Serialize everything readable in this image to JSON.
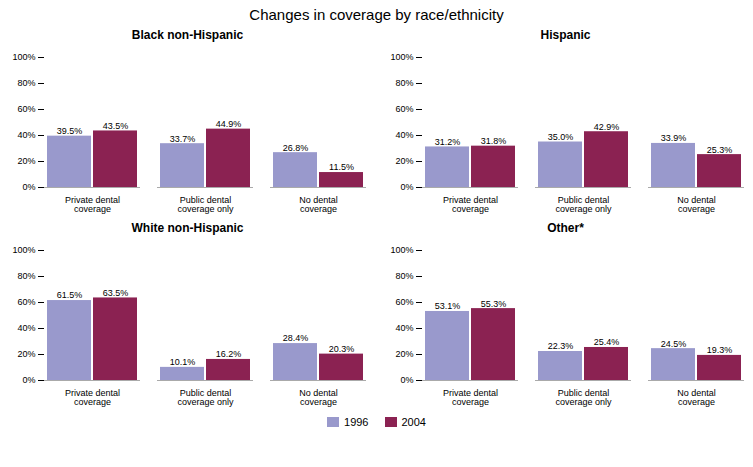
{
  "title": "Changes in coverage by race/ethnicity",
  "legend": "bottom",
  "chart_data": [
    {
      "type": "bar",
      "title": "Black non-Hispanic",
      "categories": [
        "Private dental coverage",
        "Public dental coverage only",
        "No dental coverage"
      ],
      "series": [
        {
          "name": "1996",
          "color": "#9999CC",
          "values": [
            39.5,
            33.7,
            26.8
          ],
          "value_labels": [
            "39.5%",
            "33.7%",
            "26.8%"
          ]
        },
        {
          "name": "2004",
          "color": "#8B2252",
          "values": [
            43.5,
            44.9,
            11.5
          ],
          "value_labels": [
            "43.5%",
            "44.9%",
            "11.5%"
          ]
        }
      ],
      "ylim": [
        0,
        100
      ],
      "yticks": [
        {
          "value": 0,
          "label": "0%"
        },
        {
          "value": 20,
          "label": "20%"
        },
        {
          "value": 40,
          "label": "40%"
        },
        {
          "value": 60,
          "label": "60%"
        },
        {
          "value": 80,
          "label": "80%"
        },
        {
          "value": 100,
          "label": "100%"
        }
      ],
      "grid": false,
      "data_labels": true
    },
    {
      "type": "bar",
      "title": "Hispanic",
      "categories": [
        "Private dental coverage",
        "Public dental coverage only",
        "No dental coverage"
      ],
      "series": [
        {
          "name": "1996",
          "color": "#9999CC",
          "values": [
            31.2,
            35.0,
            33.9
          ],
          "value_labels": [
            "31.2%",
            "35.0%",
            "33.9%"
          ]
        },
        {
          "name": "2004",
          "color": "#8B2252",
          "values": [
            31.8,
            42.9,
            25.3
          ],
          "value_labels": [
            "31.8%",
            "42.9%",
            "25.3%"
          ]
        }
      ],
      "ylim": [
        0,
        100
      ],
      "yticks": [
        {
          "value": 0,
          "label": "0%"
        },
        {
          "value": 20,
          "label": "20%"
        },
        {
          "value": 40,
          "label": "40%"
        },
        {
          "value": 60,
          "label": "60%"
        },
        {
          "value": 80,
          "label": "80%"
        },
        {
          "value": 100,
          "label": "100%"
        }
      ],
      "grid": false,
      "data_labels": true
    },
    {
      "type": "bar",
      "title": "White non-Hispanic",
      "categories": [
        "Private dental coverage",
        "Public dental coverage only",
        "No dental coverage"
      ],
      "series": [
        {
          "name": "1996",
          "color": "#9999CC",
          "values": [
            61.5,
            10.1,
            28.4
          ],
          "value_labels": [
            "61.5%",
            "10.1%",
            "28.4%"
          ]
        },
        {
          "name": "2004",
          "color": "#8B2252",
          "values": [
            63.5,
            16.2,
            20.3
          ],
          "value_labels": [
            "63.5%",
            "16.2%",
            "20.3%"
          ]
        }
      ],
      "ylim": [
        0,
        100
      ],
      "yticks": [
        {
          "value": 0,
          "label": "0%"
        },
        {
          "value": 20,
          "label": "20%"
        },
        {
          "value": 40,
          "label": "40%"
        },
        {
          "value": 60,
          "label": "60%"
        },
        {
          "value": 80,
          "label": "80%"
        },
        {
          "value": 100,
          "label": "100%"
        }
      ],
      "grid": false,
      "data_labels": true
    },
    {
      "type": "bar",
      "title": "Other*",
      "categories": [
        "Private dental coverage",
        "Public dental coverage only",
        "No dental coverage"
      ],
      "series": [
        {
          "name": "1996",
          "color": "#9999CC",
          "values": [
            53.1,
            22.3,
            24.5
          ],
          "value_labels": [
            "53.1%",
            "22.3%",
            "24.5%"
          ]
        },
        {
          "name": "2004",
          "color": "#8B2252",
          "values": [
            55.3,
            25.4,
            19.3
          ],
          "value_labels": [
            "55.3%",
            "25.4%",
            "19.3%"
          ]
        }
      ],
      "ylim": [
        0,
        100
      ],
      "yticks": [
        {
          "value": 0,
          "label": "0%"
        },
        {
          "value": 20,
          "label": "20%"
        },
        {
          "value": 40,
          "label": "40%"
        },
        {
          "value": 60,
          "label": "60%"
        },
        {
          "value": 80,
          "label": "80%"
        },
        {
          "value": 100,
          "label": "100%"
        }
      ],
      "grid": false,
      "data_labels": true
    }
  ]
}
